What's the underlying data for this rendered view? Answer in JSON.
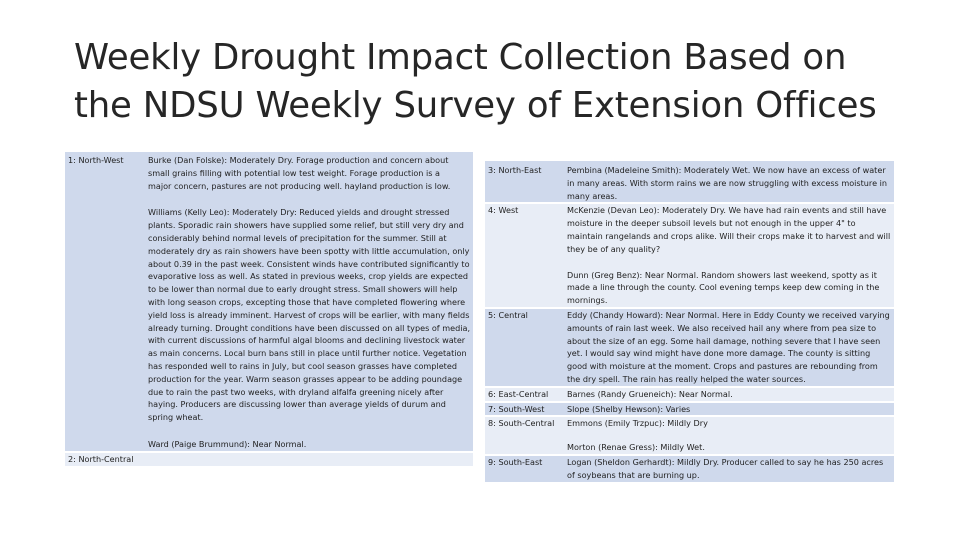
{
  "slide": {
    "title": "Weekly Drought Impact Collection Based on the NDSU Weekly Survey of Extension Offices"
  },
  "left_table": {
    "rows": [
      {
        "region": "1: North-West",
        "entries": [
          "Burke (Dan Folske): Moderately Dry. Forage production and concern about small grains filling with potential low test weight. Forage production is a major concern, pastures are not producing well. hayland production is low.",
          "Williams (Kelly Leo): Moderately Dry: Reduced yields and drought stressed plants. Sporadic rain showers have supplied some relief, but still very dry and considerably behind normal levels of precipitation for the summer. Still at moderately dry as rain showers have been spotty with little accumulation, only about 0.39 in the past week. Consistent winds have contributed significantly to evaporative loss as well. As stated in previous weeks, crop yields are expected to be lower than normal due to early drought stress. Small showers will help with long season crops, excepting those that have completed flowering where yield loss is already imminent. Harvest of crops will be earlier, with many fields already turning. Drought conditions have been discussed on all types of media, with current discussions of harmful algal blooms and declining livestock water as main concerns. Local burn bans still in place until further notice. Vegetation has responded well to rains in July, but cool season grasses have completed production for the year. Warm season grasses appear to be adding poundage due to rain the past two weeks, with dryland alfalfa greening nicely after haying. Producers are discussing lower than average yields of durum and spring wheat.",
          "Ward (Paige Brummund): Near Normal."
        ]
      },
      {
        "region": "2: North-Central",
        "entries": [
          ""
        ]
      }
    ]
  },
  "right_table": {
    "rows": [
      {
        "region": "3: North-East",
        "entries": [
          "Pembina (Madeleine Smith): Moderately Wet. We now have an excess of water in many areas. With storm rains we are now struggling with excess moisture in many areas."
        ]
      },
      {
        "region": "4: West",
        "entries": [
          "McKenzie (Devan Leo): Moderately Dry. We have had rain events and still have moisture in the deeper subsoil levels but not enough in the upper 4\" to maintain rangelands and crops alike. Will their crops make it to harvest and will they be of any quality?",
          "Dunn (Greg Benz): Near Normal. Random showers last weekend, spotty as it made a line through the county. Cool evening temps keep dew coming in the mornings."
        ]
      },
      {
        "region": "5: Central",
        "entries": [
          "Eddy (Chandy Howard): Near Normal. Here in Eddy County we received varying amounts of rain last week. We also received hail any where from pea size to about the size of an egg. Some hail damage, nothing severe that I have seen yet. I would say wind might have done more damage. The county is sitting good with moisture at the moment. Crops and pastures are rebounding from the dry spell. The rain has really helped the water sources."
        ]
      },
      {
        "region": "6: East-Central",
        "entries": [
          "Barnes (Randy Grueneich): Near Normal."
        ]
      },
      {
        "region": "7: South-West",
        "entries": [
          "Slope (Shelby Hewson): Varies"
        ]
      },
      {
        "region": "8: South-Central",
        "entries": [
          "Emmons (Emily Trzpuc): Mildly Dry",
          "Morton (Renae Gress): Mildly Wet."
        ]
      },
      {
        "region": "9: South-East",
        "entries": [
          "Logan (Sheldon Gerhardt): Mildly Dry. Producer called to say he has 250 acres of soybeans that are burning up."
        ]
      }
    ]
  }
}
